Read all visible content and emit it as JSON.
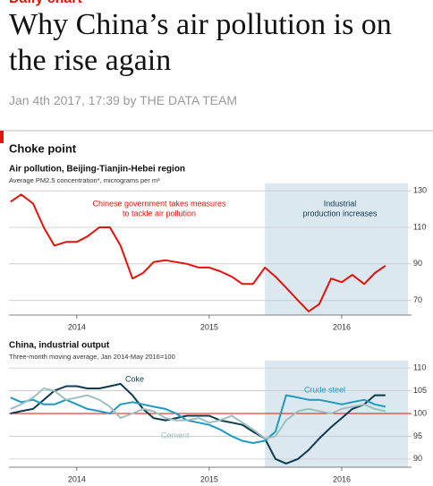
{
  "article": {
    "kicker": "Daily chart",
    "title": "Why China’s air pollution is on the rise again",
    "byline": "Jan 4th 2017, 17:39 by THE DATA TEAM",
    "figure_title": "Choke point"
  },
  "chart_data": [
    {
      "type": "line",
      "title": "Air pollution, Beijing-Tianjin-Hebei region",
      "subtitle": "Average PM2.5 concentration*, micrograms per m³",
      "x": [
        2014.0,
        2014.08,
        2014.17,
        2014.25,
        2014.33,
        2014.42,
        2014.5,
        2014.58,
        2014.67,
        2014.75,
        2014.83,
        2014.92,
        2015.0,
        2015.08,
        2015.17,
        2015.25,
        2015.33,
        2015.42,
        2015.5,
        2015.58,
        2015.67,
        2015.75,
        2015.83,
        2015.92,
        2016.0,
        2016.08,
        2016.17,
        2016.25,
        2016.33,
        2016.42,
        2016.5,
        2016.58,
        2016.67,
        2016.75,
        2016.83
      ],
      "series": [
        {
          "name": "PM2.5",
          "color": "#e3120b",
          "values": [
            124,
            128,
            123,
            110,
            100,
            102,
            102,
            105,
            110,
            110,
            100,
            82,
            85,
            91,
            92,
            91,
            90,
            88,
            88,
            86,
            83,
            79,
            79,
            88,
            83,
            77,
            70,
            64,
            68,
            82,
            80,
            84,
            79,
            85,
            89
          ]
        }
      ],
      "xlim": [
        2013.92,
        2017.0
      ],
      "xticks": [
        {
          "value": 2014.5,
          "label": "2014"
        },
        {
          "value": 2015.5,
          "label": "2015"
        },
        {
          "value": 2016.5,
          "label": "2016"
        }
      ],
      "ylim": [
        62,
        134
      ],
      "yticks": [
        70,
        90,
        110,
        130
      ],
      "grid": true,
      "shaded_range": [
        2015.92,
        2017.0
      ],
      "shade_color": "#dbe8f0",
      "annotations": [
        "Chinese government takes measures",
        "to tackle air pollution",
        "Industrial",
        "production increases"
      ]
    },
    {
      "type": "line",
      "title": "China, industrial output",
      "subtitle": "Three-month moving average, Jan 2014-May 2016=100",
      "x": [
        2014.0,
        2014.08,
        2014.17,
        2014.25,
        2014.33,
        2014.42,
        2014.5,
        2014.58,
        2014.67,
        2014.75,
        2014.83,
        2014.92,
        2015.0,
        2015.08,
        2015.17,
        2015.25,
        2015.33,
        2015.42,
        2015.5,
        2015.58,
        2015.67,
        2015.75,
        2015.83,
        2015.92,
        2016.0,
        2016.08,
        2016.17,
        2016.25,
        2016.33,
        2016.42,
        2016.5,
        2016.58,
        2016.67,
        2016.75,
        2016.83
      ],
      "series": [
        {
          "name": "Coke",
          "color": "#0d3a52",
          "values": [
            100,
            100.5,
            101,
            103,
            105,
            106,
            106,
            105.5,
            105.5,
            106,
            106.5,
            104,
            101,
            99,
            98.5,
            99,
            99.5,
            99.5,
            99.5,
            98.5,
            98,
            97.5,
            96,
            94.5,
            90,
            89,
            90,
            92,
            94.5,
            97,
            99,
            101,
            102,
            104,
            104
          ]
        },
        {
          "name": "Crude steel",
          "color": "#1e9ac0",
          "values": [
            103.5,
            102.5,
            103,
            102,
            102,
            103,
            102,
            101,
            100.5,
            100,
            102,
            102.5,
            102,
            101.5,
            101,
            100,
            98.5,
            98,
            97.5,
            96.5,
            95,
            94,
            93.5,
            94,
            96,
            104,
            103.5,
            103,
            103,
            102.5,
            102,
            102.5,
            103,
            102,
            101.5
          ]
        },
        {
          "name": "Cement",
          "color": "#9cc0bd",
          "values": [
            101,
            102,
            103.5,
            105.5,
            105,
            103,
            103.5,
            104,
            103,
            101.5,
            99,
            100,
            101,
            100.5,
            99,
            98.5,
            98.5,
            99,
            98,
            98.5,
            99.5,
            98,
            96.5,
            94.5,
            95,
            98.5,
            100.5,
            101,
            100.5,
            100,
            101,
            101.5,
            102,
            101,
            100.5
          ]
        }
      ],
      "xlim": [
        2013.92,
        2017.0
      ],
      "xticks": [
        {
          "value": 2014.5,
          "label": "2014"
        },
        {
          "value": 2015.5,
          "label": "2015"
        },
        {
          "value": 2016.5,
          "label": "2016"
        }
      ],
      "ylim": [
        88.2,
        111.6
      ],
      "yticks": [
        90,
        95,
        100,
        105,
        110
      ],
      "grid": true,
      "reference_line": 100,
      "reference_color": "#e3120b",
      "shaded_range": [
        2015.92,
        2017.0
      ],
      "shade_color": "#dbe8f0"
    }
  ]
}
